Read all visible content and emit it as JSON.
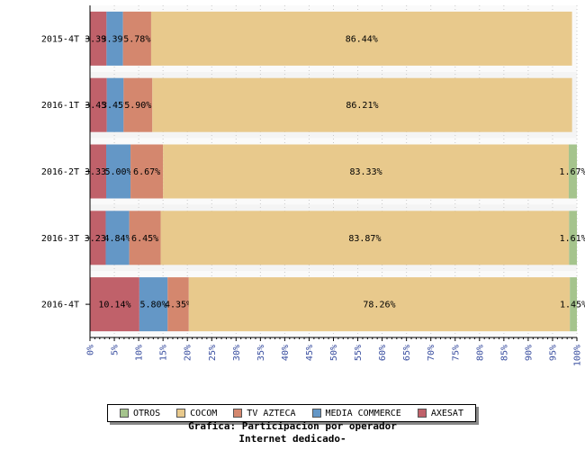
{
  "chart_data": {
    "type": "bar",
    "orientation": "horizontal",
    "stacked": true,
    "percent": true,
    "title": "Grafica: Participacion por operador",
    "subtitle": "Internet dedicado-",
    "categories": [
      "2015-4T",
      "2016-1T",
      "2016-2T",
      "2016-3T",
      "2016-4T"
    ],
    "xlim": [
      0,
      100
    ],
    "x_ticks": [
      "0%",
      "5%",
      "10%",
      "15%",
      "20%",
      "25%",
      "30%",
      "35%",
      "40%",
      "45%",
      "50%",
      "55%",
      "60%",
      "65%",
      "70%",
      "75%",
      "80%",
      "85%",
      "90%",
      "95%",
      "100%"
    ],
    "grid": true,
    "legend_position": "bottom",
    "series": [
      {
        "name": "AXESAT",
        "color": "#c0616a",
        "values": [
          3.39,
          3.45,
          3.33,
          3.23,
          10.14
        ],
        "labels": [
          "3.39%",
          "3.45%",
          "3.33%",
          "3.23%",
          "10.14%"
        ]
      },
      {
        "name": "MEDIA COMMERCE",
        "color": "#6497c6",
        "values": [
          3.39,
          3.45,
          5.0,
          4.84,
          5.8
        ],
        "labels": [
          "3.39%",
          "3.45%",
          "5.00%",
          "4.84%",
          "5.80%"
        ]
      },
      {
        "name": "TV AZTECA",
        "color": "#d4876e",
        "values": [
          5.78,
          5.9,
          6.67,
          6.45,
          4.35
        ],
        "labels": [
          "5.78%",
          "5.90%",
          "6.67%",
          "6.45%",
          "4.35%"
        ]
      },
      {
        "name": "COCOM",
        "color": "#e8c98c",
        "values": [
          86.44,
          86.21,
          83.33,
          83.87,
          78.26
        ],
        "labels": [
          "86.44%",
          "86.21%",
          "83.33%",
          "83.87%",
          "78.26%"
        ]
      },
      {
        "name": "OTROS",
        "color": "#a5c48d",
        "values": [
          0,
          0,
          1.67,
          1.61,
          1.45
        ],
        "labels": [
          "",
          "",
          "1.67%",
          "1.61%",
          "1.45%"
        ]
      }
    ],
    "legend_order": [
      "OTROS",
      "COCOM",
      "TV AZTECA",
      "MEDIA COMMERCE",
      "AXESAT"
    ]
  }
}
